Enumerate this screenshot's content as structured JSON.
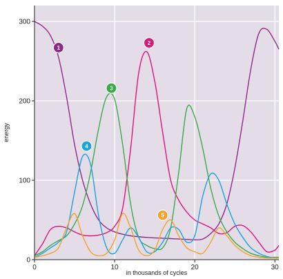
{
  "chart_data": {
    "type": "line",
    "title": "",
    "xlabel": "in thousands of cycles",
    "ylabel": "energy",
    "xlim": [
      0,
      30.5
    ],
    "ylim": [
      0,
      320
    ],
    "x_ticks": [
      0,
      10,
      20,
      30
    ],
    "y_ticks": [
      0,
      100,
      200,
      300
    ],
    "x_tick_labels": [
      "0",
      "10",
      "20",
      "30"
    ],
    "y_tick_labels": [
      "0",
      "100",
      "200",
      "300"
    ],
    "grid": true,
    "background": "#e4dde8",
    "series": [
      {
        "name": "1",
        "color": "#8e2a8a",
        "label_at": [
          3,
          267
        ],
        "points": [
          [
            0,
            300
          ],
          [
            1,
            294
          ],
          [
            2,
            282
          ],
          [
            3,
            255
          ],
          [
            4,
            205
          ],
          [
            5,
            145
          ],
          [
            6,
            100
          ],
          [
            7,
            70
          ],
          [
            8,
            50
          ],
          [
            9,
            40
          ],
          [
            10,
            35
          ],
          [
            11,
            32
          ],
          [
            12,
            30
          ],
          [
            14,
            28
          ],
          [
            16,
            27
          ],
          [
            18,
            26
          ],
          [
            20,
            25
          ],
          [
            21,
            26
          ],
          [
            22,
            33
          ],
          [
            23,
            45
          ],
          [
            24,
            70
          ],
          [
            25,
            115
          ],
          [
            26,
            175
          ],
          [
            27,
            240
          ],
          [
            28,
            285
          ],
          [
            29,
            290
          ],
          [
            30,
            275
          ],
          [
            30.5,
            265
          ]
        ]
      },
      {
        "name": "2",
        "color": "#e0137a",
        "label_at": [
          14.3,
          273
        ],
        "points": [
          [
            0,
            5
          ],
          [
            1,
            20
          ],
          [
            2,
            38
          ],
          [
            3,
            42
          ],
          [
            4,
            40
          ],
          [
            5,
            35
          ],
          [
            6,
            31
          ],
          [
            7,
            30
          ],
          [
            8,
            31
          ],
          [
            9,
            34
          ],
          [
            10,
            42
          ],
          [
            11,
            65
          ],
          [
            12,
            140
          ],
          [
            13,
            235
          ],
          [
            14,
            262
          ],
          [
            15,
            225
          ],
          [
            16,
            160
          ],
          [
            17,
            100
          ],
          [
            18,
            75
          ],
          [
            19,
            60
          ],
          [
            20,
            50
          ],
          [
            21,
            45
          ],
          [
            22,
            40
          ],
          [
            23,
            33
          ],
          [
            24,
            34
          ],
          [
            25,
            42
          ],
          [
            26,
            43
          ],
          [
            27,
            35
          ],
          [
            28,
            22
          ],
          [
            29,
            10
          ],
          [
            30,
            12
          ],
          [
            30.5,
            18
          ]
        ]
      },
      {
        "name": "3",
        "color": "#3aaa48",
        "label_at": [
          9.6,
          216
        ],
        "points": [
          [
            0,
            5
          ],
          [
            1,
            10
          ],
          [
            2,
            18
          ],
          [
            3,
            24
          ],
          [
            4,
            30
          ],
          [
            5,
            45
          ],
          [
            6,
            68
          ],
          [
            7,
            110
          ],
          [
            8,
            165
          ],
          [
            9,
            205
          ],
          [
            10,
            202
          ],
          [
            11,
            145
          ],
          [
            12,
            70
          ],
          [
            13,
            28
          ],
          [
            14,
            18
          ],
          [
            15,
            14
          ],
          [
            16,
            15
          ],
          [
            17,
            40
          ],
          [
            18,
            110
          ],
          [
            19,
            190
          ],
          [
            20,
            180
          ],
          [
            21,
            140
          ],
          [
            22,
            90
          ],
          [
            23,
            55
          ],
          [
            24,
            35
          ],
          [
            25,
            22
          ],
          [
            26,
            14
          ],
          [
            27,
            8
          ],
          [
            28,
            5
          ],
          [
            29,
            3
          ],
          [
            30,
            3
          ],
          [
            30.5,
            3
          ]
        ]
      },
      {
        "name": "4",
        "color": "#1aa3dc",
        "label_at": [
          6.5,
          143
        ],
        "points": [
          [
            0,
            3
          ],
          [
            1,
            8
          ],
          [
            2,
            15
          ],
          [
            3,
            22
          ],
          [
            4,
            35
          ],
          [
            5,
            85
          ],
          [
            6,
            130
          ],
          [
            7,
            120
          ],
          [
            8,
            55
          ],
          [
            9,
            15
          ],
          [
            10,
            8
          ],
          [
            11,
            25
          ],
          [
            12,
            40
          ],
          [
            13,
            28
          ],
          [
            14,
            10
          ],
          [
            15,
            10
          ],
          [
            16,
            22
          ],
          [
            17,
            40
          ],
          [
            18,
            38
          ],
          [
            19,
            22
          ],
          [
            20,
            30
          ],
          [
            21,
            80
          ],
          [
            22,
            108
          ],
          [
            23,
            100
          ],
          [
            24,
            70
          ],
          [
            25,
            45
          ],
          [
            26,
            28
          ],
          [
            27,
            15
          ],
          [
            28,
            8
          ],
          [
            29,
            4
          ],
          [
            30,
            2
          ],
          [
            30.5,
            2
          ]
        ]
      },
      {
        "name": "5",
        "color": "#f3a32b",
        "label_at": [
          16,
          56
        ],
        "points": [
          [
            0,
            3
          ],
          [
            1,
            5
          ],
          [
            2,
            8
          ],
          [
            3,
            15
          ],
          [
            4,
            40
          ],
          [
            5,
            58
          ],
          [
            6,
            30
          ],
          [
            7,
            10
          ],
          [
            8,
            5
          ],
          [
            9,
            8
          ],
          [
            10,
            25
          ],
          [
            11,
            58
          ],
          [
            12,
            40
          ],
          [
            13,
            12
          ],
          [
            14,
            5
          ],
          [
            15,
            12
          ],
          [
            16,
            38
          ],
          [
            17,
            50
          ],
          [
            18,
            30
          ],
          [
            19,
            15
          ],
          [
            20,
            10
          ],
          [
            21,
            8
          ],
          [
            22,
            22
          ],
          [
            23,
            40
          ],
          [
            24,
            30
          ],
          [
            25,
            18
          ],
          [
            26,
            10
          ],
          [
            27,
            5
          ],
          [
            28,
            3
          ],
          [
            29,
            2
          ],
          [
            30,
            2
          ],
          [
            30.5,
            2
          ]
        ]
      }
    ]
  }
}
